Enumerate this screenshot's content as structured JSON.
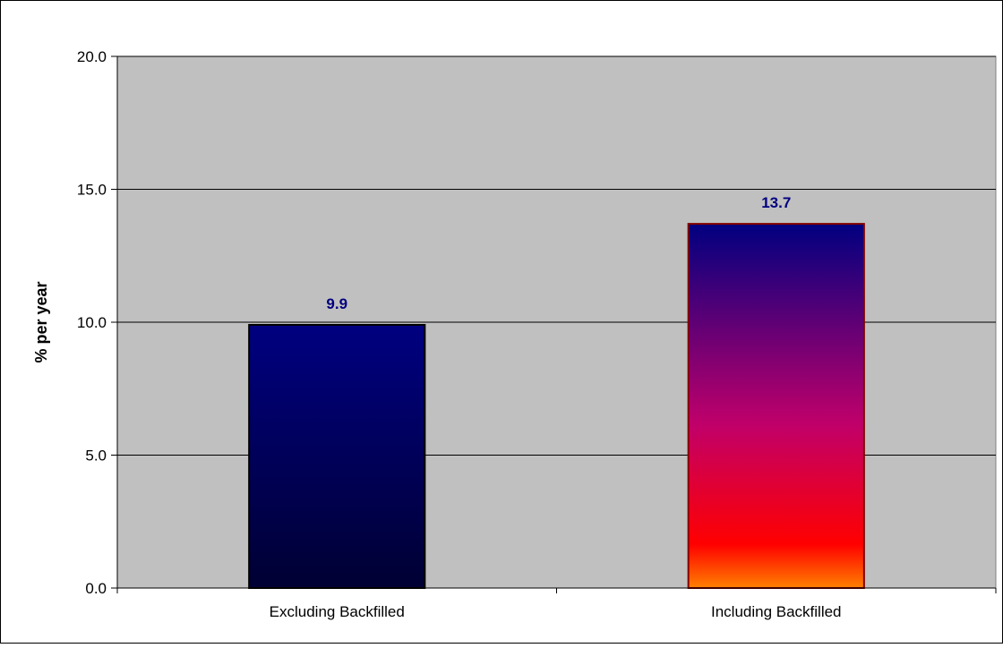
{
  "chart_data": {
    "type": "bar",
    "categories": [
      "Excluding Backfilled",
      "Including Backfilled"
    ],
    "values": [
      9.9,
      13.7
    ],
    "data_labels": [
      "9.9",
      "13.7"
    ],
    "title": "",
    "xlabel": "",
    "ylabel": "% per year",
    "ylim": [
      0,
      20
    ],
    "yticks": [
      0,
      5,
      10,
      15,
      20
    ],
    "ytick_labels": [
      "0.0",
      "5.0",
      "10.0",
      "15.0",
      "20.0"
    ],
    "grid": true,
    "legend": "none",
    "colors": {
      "plot_background": "#c0c0c0",
      "gridline": "#000000",
      "data_label": "#000080",
      "bar1_top": "#000080",
      "bar1_bottom": "#000033",
      "bar2_top": "#000080",
      "bar2_mid": "#c0006a",
      "bar2_low": "#ff0000",
      "bar2_bottom": "#ff8000",
      "bar2_border": "#800000"
    }
  }
}
